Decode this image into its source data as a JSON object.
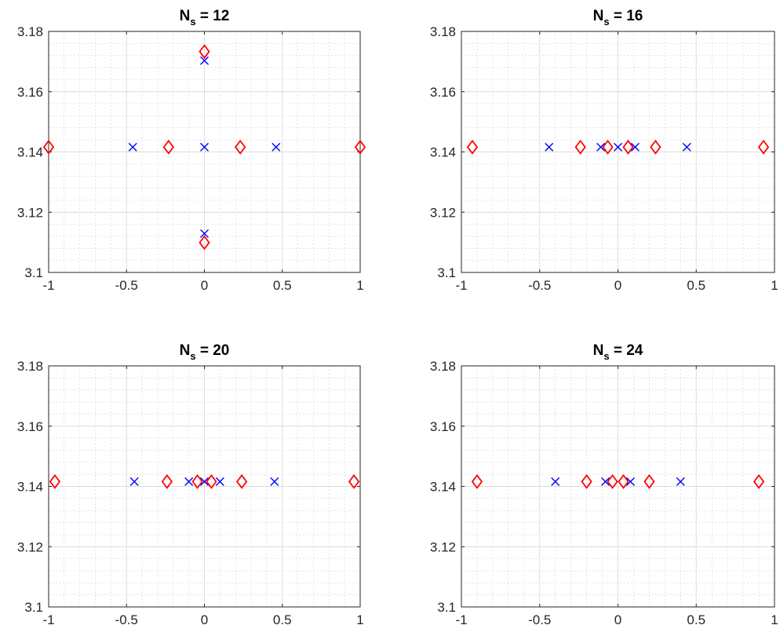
{
  "chart_data": [
    {
      "type": "scatter",
      "title_main": "N",
      "title_sub": "s",
      "title_rest": " = 12",
      "xlim": [
        -1,
        1
      ],
      "ylim": [
        3.1,
        3.18
      ],
      "xticks": [
        -1,
        -0.5,
        0,
        0.5,
        1
      ],
      "xtick_labels": [
        "-1",
        "-0.5",
        "0",
        "0.5",
        "1"
      ],
      "yticks": [
        3.1,
        3.12,
        3.14,
        3.16,
        3.18
      ],
      "ytick_labels": [
        "3.1",
        "3.12",
        "3.14",
        "3.16",
        "3.18"
      ],
      "grid": "major and minor (dotted)",
      "series": [
        {
          "marker": "x",
          "color": "#0000ff",
          "points": [
            [
              -0.46,
              3.1416
            ],
            [
              0,
              3.1416
            ],
            [
              0.46,
              3.1416
            ],
            [
              0,
              3.1703
            ],
            [
              0,
              3.1129
            ]
          ]
        },
        {
          "marker": "diamond",
          "color": "#ff0000",
          "points": [
            [
              -1,
              3.1416
            ],
            [
              -0.23,
              3.1416
            ],
            [
              0.23,
              3.1416
            ],
            [
              1,
              3.1416
            ],
            [
              0,
              3.1733
            ],
            [
              0,
              3.1099
            ]
          ]
        }
      ]
    },
    {
      "type": "scatter",
      "title_main": "N",
      "title_sub": "s",
      "title_rest": " = 16",
      "xlim": [
        -1,
        1
      ],
      "ylim": [
        3.1,
        3.18
      ],
      "xticks": [
        -1,
        -0.5,
        0,
        0.5,
        1
      ],
      "xtick_labels": [
        "-1",
        "-0.5",
        "0",
        "0.5",
        "1"
      ],
      "yticks": [
        3.1,
        3.12,
        3.14,
        3.16,
        3.18
      ],
      "ytick_labels": [
        "3.1",
        "3.12",
        "3.14",
        "3.16",
        "3.18"
      ],
      "grid": "major and minor (dotted)",
      "series": [
        {
          "marker": "x",
          "color": "#0000ff",
          "points": [
            [
              -0.44,
              3.1416
            ],
            [
              -0.11,
              3.1416
            ],
            [
              0,
              3.1416
            ],
            [
              0.11,
              3.1416
            ],
            [
              0.44,
              3.1416
            ]
          ]
        },
        {
          "marker": "diamond",
          "color": "#ff0000",
          "points": [
            [
              -0.93,
              3.1416
            ],
            [
              -0.24,
              3.1416
            ],
            [
              -0.065,
              3.1416
            ],
            [
              0.065,
              3.1416
            ],
            [
              0.24,
              3.1416
            ],
            [
              0.93,
              3.1416
            ]
          ]
        }
      ]
    },
    {
      "type": "scatter",
      "title_main": "N",
      "title_sub": "s",
      "title_rest": " = 20",
      "xlim": [
        -1,
        1
      ],
      "ylim": [
        3.1,
        3.18
      ],
      "xticks": [
        -1,
        -0.5,
        0,
        0.5,
        1
      ],
      "xtick_labels": [
        "-1",
        "-0.5",
        "0",
        "0.5",
        "1"
      ],
      "yticks": [
        3.1,
        3.12,
        3.14,
        3.16,
        3.18
      ],
      "ytick_labels": [
        "3.1",
        "3.12",
        "3.14",
        "3.16",
        "3.18"
      ],
      "grid": "major and minor (dotted)",
      "series": [
        {
          "marker": "x",
          "color": "#0000ff",
          "points": [
            [
              -0.45,
              3.1416
            ],
            [
              -0.1,
              3.1416
            ],
            [
              0,
              3.1416
            ],
            [
              0.1,
              3.1416
            ],
            [
              0.45,
              3.1416
            ]
          ]
        },
        {
          "marker": "diamond",
          "color": "#ff0000",
          "points": [
            [
              -0.96,
              3.1416
            ],
            [
              -0.24,
              3.1416
            ],
            [
              -0.045,
              3.1416
            ],
            [
              0.045,
              3.1416
            ],
            [
              0.24,
              3.1416
            ],
            [
              0.96,
              3.1416
            ]
          ]
        }
      ]
    },
    {
      "type": "scatter",
      "title_main": "N",
      "title_sub": "s",
      "title_rest": " = 24",
      "xlim": [
        -1,
        1
      ],
      "ylim": [
        3.1,
        3.18
      ],
      "xticks": [
        -1,
        -0.5,
        0,
        0.5,
        1
      ],
      "xtick_labels": [
        "-1",
        "-0.5",
        "0",
        "0.5",
        "1"
      ],
      "yticks": [
        3.1,
        3.12,
        3.14,
        3.16,
        3.18
      ],
      "ytick_labels": [
        "3.1",
        "3.12",
        "3.14",
        "3.16",
        "3.18"
      ],
      "grid": "major and minor (dotted)",
      "series": [
        {
          "marker": "x",
          "color": "#0000ff",
          "points": [
            [
              -0.4,
              3.1416
            ],
            [
              -0.08,
              3.1416
            ],
            [
              0.08,
              3.1416
            ],
            [
              0.4,
              3.1416
            ]
          ]
        },
        {
          "marker": "diamond",
          "color": "#ff0000",
          "points": [
            [
              -0.9,
              3.1416
            ],
            [
              -0.2,
              3.1416
            ],
            [
              -0.035,
              3.1416
            ],
            [
              0.035,
              3.1416
            ],
            [
              0.2,
              3.1416
            ],
            [
              0.9,
              3.1416
            ]
          ]
        }
      ]
    }
  ]
}
